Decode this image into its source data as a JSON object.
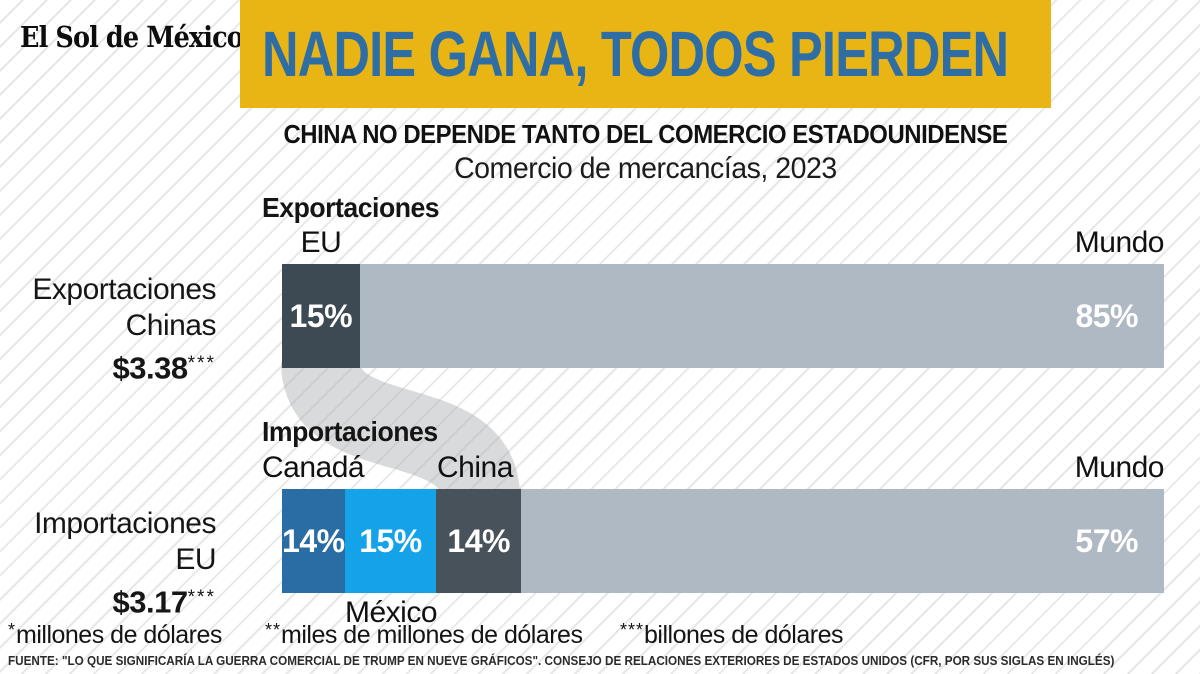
{
  "brand": {
    "logo_text": "El Sol de México"
  },
  "header": {
    "title": "NADIE GANA, TODOS PIERDEN",
    "kicker": "CHINA NO DEPENDE TANTO DEL COMERCIO ESTADOUNIDENSE",
    "subtitle": "Comercio de mercancías, 2023"
  },
  "colors": {
    "banner_bg": "#e9b514",
    "title_blue": "#2e6ea4",
    "export_eu_dark": "#3e4a53",
    "import_china_dark": "#47525b",
    "world_light": "#aeb9c3",
    "canada_blue": "#2a6ca4",
    "mexico_blue": "#14a3e8",
    "connector_gray": "#a9adb0"
  },
  "chart_data": [
    {
      "type": "bar",
      "section_label": "Exportaciones",
      "row_label_line1": "Exportaciones",
      "row_label_line2": "Chinas",
      "row_total": "$3.38",
      "row_total_stars": "***",
      "segments": [
        {
          "name": "EU",
          "label_above": "EU",
          "value_label": "15%",
          "value_pct": 15,
          "color": "#3e4a53",
          "visual_width_pct": 8.8
        },
        {
          "name": "Mundo",
          "label_above": "Mundo",
          "value_label": "85%",
          "value_pct": 85,
          "color": "#aeb9c3",
          "visual_width_pct": 91.2
        }
      ]
    },
    {
      "type": "bar",
      "section_label": "Importaciones",
      "row_label_line1": "Importaciones",
      "row_label_line2": "EU",
      "row_total": "$3.17",
      "row_total_stars": "***",
      "segments": [
        {
          "name": "Canadá",
          "label_above": "Canadá",
          "value_label": "14%",
          "value_pct": 14,
          "color": "#2a6ca4",
          "visual_width_pct": 7.1
        },
        {
          "name": "México",
          "label_below": "México",
          "value_label": "15%",
          "value_pct": 15,
          "color": "#14a3e8",
          "visual_width_pct": 10.4
        },
        {
          "name": "China",
          "label_above": "China",
          "value_label": "14%",
          "value_pct": 14,
          "color": "#47525b",
          "visual_width_pct": 9.6
        },
        {
          "name": "Mundo",
          "label_above": "Mundo",
          "value_label": "57%",
          "value_pct": 57,
          "color": "#aeb9c3",
          "visual_width_pct": 72.9
        }
      ]
    }
  ],
  "footnotes": [
    {
      "stars": "*",
      "text": "millones de dólares"
    },
    {
      "stars": "**",
      "text": "miles de millones de dólares"
    },
    {
      "stars": "***",
      "text": "billones de dólares"
    }
  ],
  "source": "FUENTE: \"LO QUE SIGNIFICARÍA LA GUERRA COMERCIAL DE TRUMP EN NUEVE GRÁFICOS\". CONSEJO DE RELACIONES EXTERIORES DE ESTADOS UNIDOS (CFR, POR SUS SIGLAS EN INGLÉS)"
}
